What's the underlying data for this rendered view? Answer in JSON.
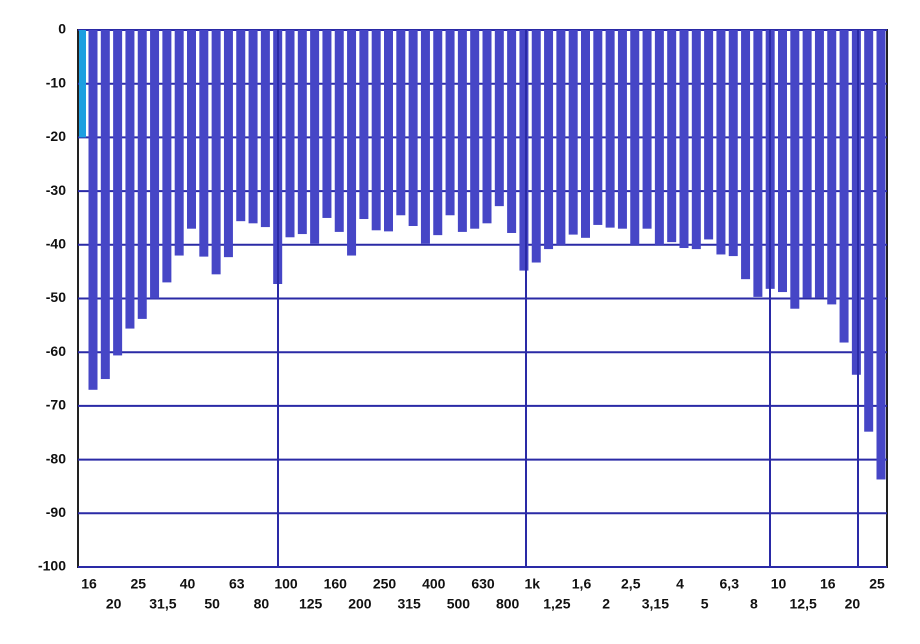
{
  "chart_data": {
    "type": "bar",
    "categories": [
      "16",
      null,
      "20",
      null,
      "25",
      null,
      "31,5",
      null,
      "40",
      null,
      "50",
      null,
      "63",
      null,
      "80",
      null,
      "100",
      null,
      "125",
      null,
      "160",
      null,
      "200",
      null,
      "250",
      null,
      "315",
      null,
      "400",
      null,
      "500",
      null,
      "630",
      null,
      "800",
      null,
      "1k",
      null,
      "1,25",
      null,
      "1,6",
      null,
      "2",
      null,
      "2,5",
      null,
      "3,15",
      null,
      "4",
      null,
      "5",
      null,
      "6,3",
      null,
      "8",
      null,
      "10",
      null,
      "12,5",
      null,
      "16",
      null,
      "20",
      null,
      "25"
    ],
    "values": [
      -67,
      -65,
      -60.6,
      -55.6,
      -53.8,
      -50,
      -47,
      -42,
      -37,
      -42.2,
      -45.5,
      -42.3,
      -35.6,
      -36,
      -36.7,
      -47.3,
      -38.6,
      -38,
      -39.8,
      -35,
      -37.6,
      -42,
      -35.2,
      -37.3,
      -37.5,
      -34.5,
      -36.5,
      -39.8,
      -38.2,
      -34.5,
      -37.6,
      -37,
      -36,
      -32.8,
      -37.8,
      -44.8,
      -43.3,
      -40.8,
      -40,
      -38.1,
      -38.7,
      -36.3,
      -36.8,
      -37,
      -40,
      -37,
      -40,
      -39.5,
      -40.6,
      -40.8,
      -39,
      -41.8,
      -42.1,
      -46.4,
      -49.7,
      -48.2,
      -48.8,
      -51.9,
      -49.8,
      -49.8,
      -51.1,
      -58.2,
      -64.2,
      -74.8,
      -83.7
    ],
    "color": "#4646c6",
    "overall_value": -20,
    "overall_color": "#1d9fe0",
    "ylim": [
      -100,
      0
    ],
    "yticks": [
      0,
      -10,
      -20,
      -30,
      -40,
      -50,
      -60,
      -70,
      -80,
      -90,
      -100
    ],
    "grid": true
  }
}
